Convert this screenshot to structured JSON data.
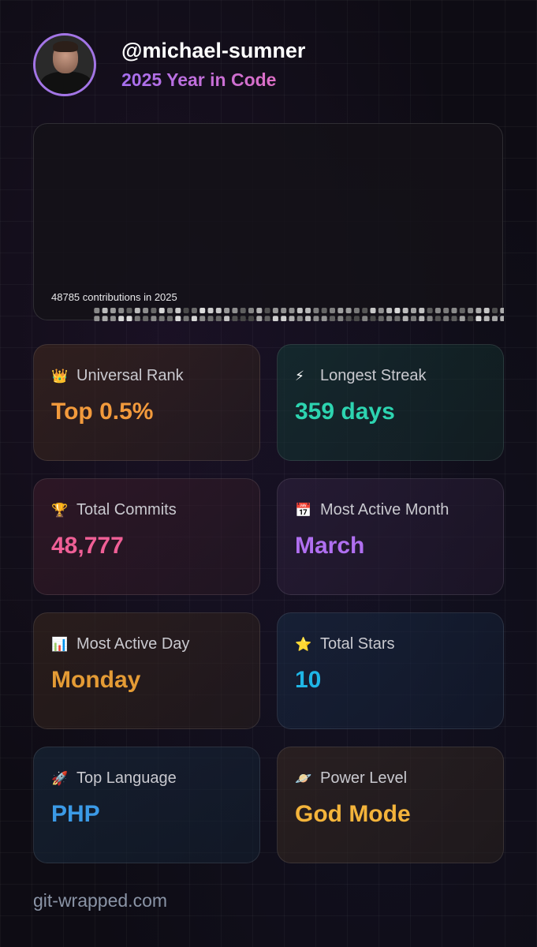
{
  "profile": {
    "username": "@michael-sumner",
    "subtitle": "2025 Year in Code",
    "avatar_alt": "profile photo"
  },
  "contributions": {
    "summary": "48785 contributions in 2025"
  },
  "stats": [
    {
      "icon": "crown-icon",
      "glyph": "👑",
      "label": "Universal Rank",
      "value": "Top 0.5%",
      "color": "#f29a3c"
    },
    {
      "icon": "lightning-icon",
      "glyph": "⚡",
      "label": "Longest Streak",
      "value": "359 days",
      "color": "#2dd4b0"
    },
    {
      "icon": "trophy-icon",
      "glyph": "🏆",
      "label": "Total Commits",
      "value": "48,777",
      "color": "#ef5f96"
    },
    {
      "icon": "calendar-icon",
      "glyph": "📅",
      "label": "Most Active Month",
      "value": "March",
      "color": "#b06ff0"
    },
    {
      "icon": "bar-chart-icon",
      "glyph": "📊",
      "label": "Most Active Day",
      "value": "Monday",
      "color": "#e49b35"
    },
    {
      "icon": "star-icon",
      "glyph": "⭐",
      "label": "Total Stars",
      "value": "10",
      "color": "#1fb6e6"
    },
    {
      "icon": "rocket-icon",
      "glyph": "🚀",
      "label": "Top Language",
      "value": "PHP",
      "color": "#3b9ae6"
    },
    {
      "icon": "planet-icon",
      "glyph": "🪐",
      "label": "Power Level",
      "value": "God Mode",
      "color": "#f4b43b"
    }
  ],
  "footer": {
    "text": "git-wrapped.com"
  }
}
